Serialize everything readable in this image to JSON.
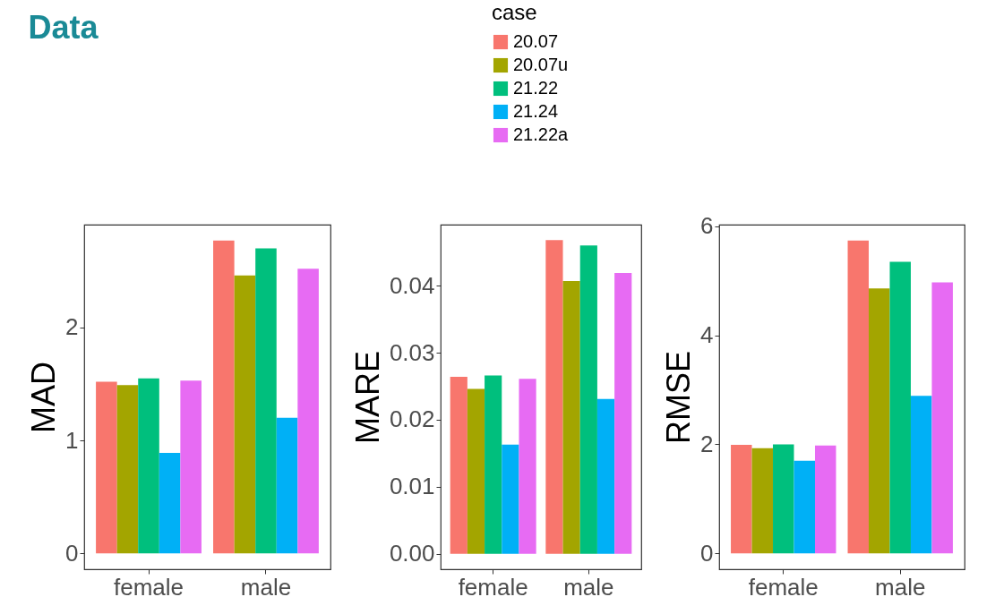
{
  "chart_data": [
    {
      "type": "bar",
      "title": "Data",
      "categories": [
        "female",
        "male"
      ],
      "ylabel": "MAD",
      "ylim": [
        -0.14,
        2.91
      ],
      "yticks": [
        0,
        1,
        2
      ],
      "series": [
        {
          "color": "#f8766d",
          "values": [
            1.52,
            2.77
          ]
        },
        {
          "color": "#a3a500",
          "values": [
            1.49,
            2.46
          ]
        },
        {
          "color": "#00bf7d",
          "values": [
            1.55,
            2.7
          ]
        },
        {
          "color": "#00b0f6",
          "values": [
            0.89,
            1.2
          ]
        },
        {
          "color": "#e76bf3",
          "values": [
            1.53,
            2.52
          ]
        }
      ]
    },
    {
      "type": "bar",
      "categories": [
        "female",
        "male"
      ],
      "ylabel": "MARE",
      "ylim": [
        -0.0023,
        0.0491
      ],
      "yticks": [
        {
          "value": 0,
          "label": "0.00"
        },
        0.01,
        0.02,
        0.03,
        0.04
      ],
      "legend": "top",
      "legend_title": "case",
      "series": [
        {
          "name": "20.07",
          "color": "#f8766d",
          "values": [
            0.0264,
            0.0468
          ]
        },
        {
          "name": "20.07u",
          "color": "#a3a500",
          "values": [
            0.0246,
            0.0407
          ]
        },
        {
          "name": "21.22",
          "color": "#00bf7d",
          "values": [
            0.0266,
            0.046
          ]
        },
        {
          "name": "21.24",
          "color": "#00b0f6",
          "values": [
            0.0163,
            0.0231
          ]
        },
        {
          "name": "21.22a",
          "color": "#e76bf3",
          "values": [
            0.0261,
            0.0419
          ]
        }
      ]
    },
    {
      "type": "bar",
      "categories": [
        "female",
        "male"
      ],
      "ylabel": "RMSE",
      "ylim": [
        -0.29,
        6.03
      ],
      "yticks": [
        0,
        2,
        4,
        6
      ],
      "series": [
        {
          "color": "#f8766d",
          "values": [
            1.99,
            5.74
          ]
        },
        {
          "color": "#a3a500",
          "values": [
            1.93,
            4.86
          ]
        },
        {
          "color": "#00bf7d",
          "values": [
            2.0,
            5.35
          ]
        },
        {
          "color": "#00b0f6",
          "values": [
            1.7,
            2.89
          ]
        },
        {
          "color": "#e76bf3",
          "values": [
            1.98,
            4.97
          ]
        }
      ]
    }
  ]
}
